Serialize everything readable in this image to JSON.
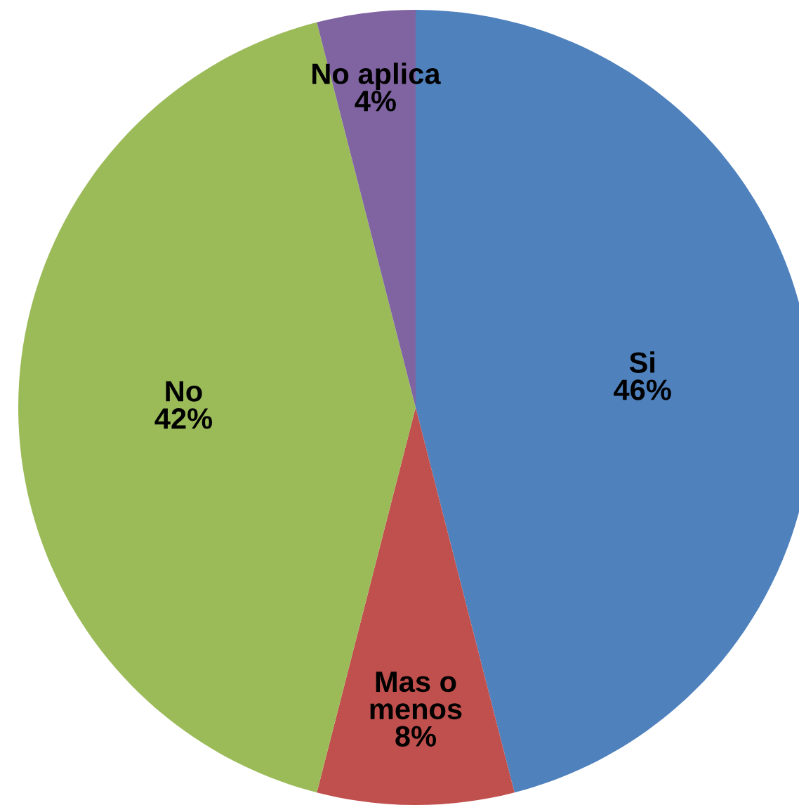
{
  "chart_data": {
    "type": "pie",
    "categories": [
      "Si",
      "Mas o\nmenos",
      "No",
      "No aplica"
    ],
    "values": [
      46,
      8,
      42,
      4
    ],
    "colors": [
      "#4f81bd",
      "#c0504d",
      "#9bbb59",
      "#8064a2"
    ],
    "value_labels": [
      "46%",
      "8%",
      "42%",
      "4%"
    ]
  }
}
